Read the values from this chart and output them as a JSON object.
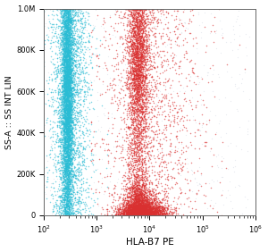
{
  "title": "",
  "xlabel": "HLA-B7 PE",
  "ylabel": "SS-A :: SS INT LIN",
  "xlim_log": [
    2,
    6
  ],
  "ylim": [
    0,
    1000000
  ],
  "yticks": [
    0,
    200000,
    400000,
    600000,
    800000,
    1000000
  ],
  "ytick_labels": [
    "0",
    "200K",
    "400K",
    "600K",
    "800K",
    "1.0M"
  ],
  "bg_color": "#ffffff",
  "cyan_color": "#29bcd4",
  "red_color": "#d93030",
  "gray_color": "#c8d0d8",
  "seed": 42,
  "n_cyan_core": 5000,
  "n_cyan_scatter": 2000,
  "n_red_tall": 4000,
  "n_red_blob": 3000,
  "n_red_scatter": 1500,
  "n_gray": 600
}
